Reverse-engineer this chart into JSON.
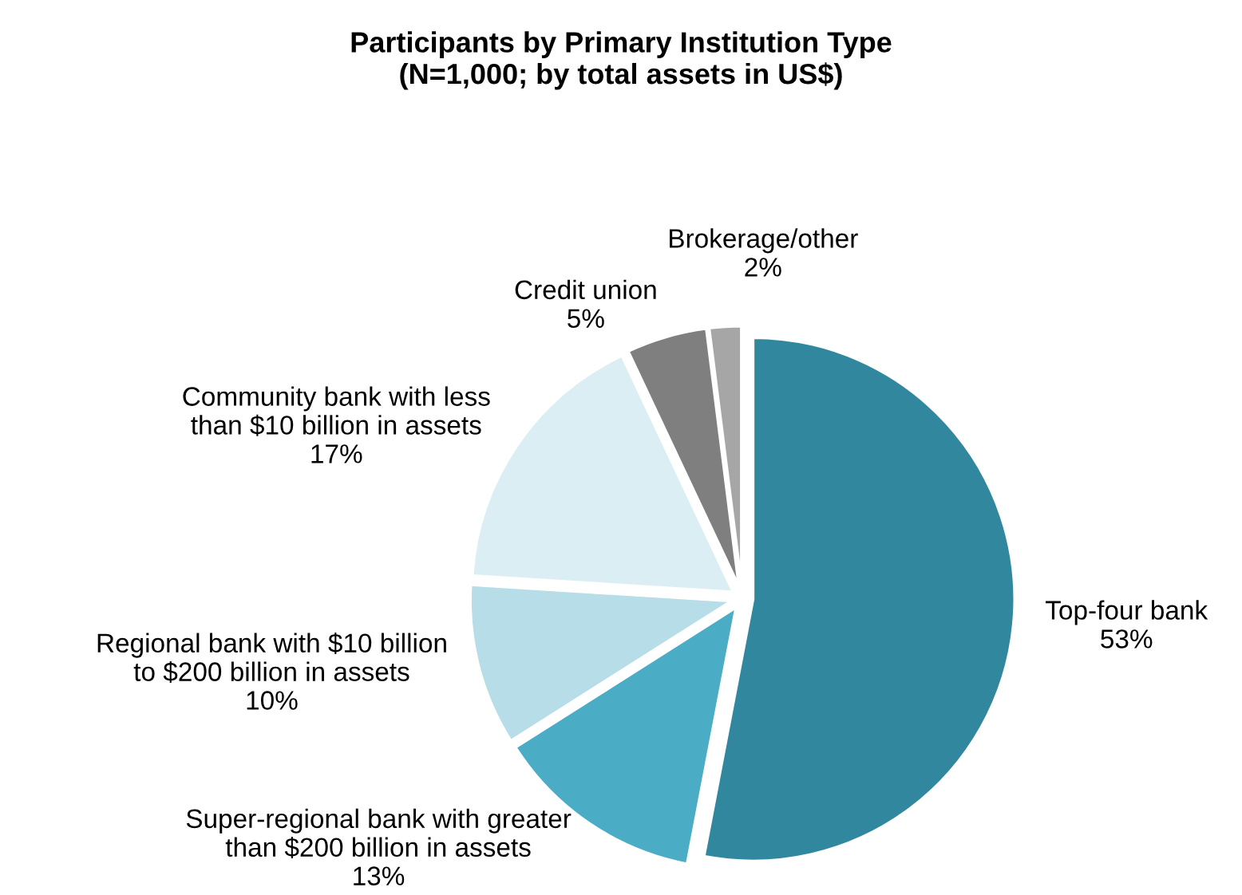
{
  "chart_data": {
    "type": "pie",
    "title": "Participants by Primary Institution Type\n(N=1,000; by total assets in US$)",
    "categories": [
      "Top-four bank",
      "Super-regional bank with greater\nthan $200 billion in assets",
      "Regional bank with $10 billion\nto $200 billion in assets",
      "Community bank with less\nthan $10 billion in assets",
      "Credit union",
      "Brokerage/other"
    ],
    "values": [
      53,
      13,
      10,
      17,
      5,
      2
    ],
    "value_labels": [
      "53%",
      "13%",
      "10%",
      "17%",
      "5%",
      "2%"
    ],
    "colors": [
      "#31889e",
      "#4bacc6",
      "#b7dde8",
      "#dbeef4",
      "#7f7f7f",
      "#a6a6a6"
    ],
    "legend": false
  }
}
